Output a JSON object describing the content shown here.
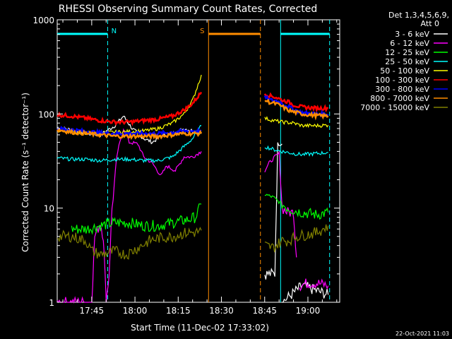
{
  "chart_data": {
    "type": "line",
    "title": "RHESSI Observing Summary Count Rates, Corrected",
    "xlabel": "Start Time (11-Dec-02 17:33:02)",
    "ylabel": "Corrected Count Rate (s⁻¹ detector⁻¹)",
    "footer": "22-Oct-2021 11:03",
    "yscale": "log",
    "ylim": [
      1,
      1000
    ],
    "xlim_minutes": [
      0,
      98
    ],
    "x_ticks": [
      {
        "label": "17:45",
        "minutes": 11.97
      },
      {
        "label": "18:00",
        "minutes": 26.97
      },
      {
        "label": "18:15",
        "minutes": 41.97
      },
      {
        "label": "18:30",
        "minutes": 56.97
      },
      {
        "label": "18:45",
        "minutes": 71.97
      },
      {
        "label": "19:00",
        "minutes": 86.97
      }
    ],
    "y_ticks": [
      {
        "label": "1",
        "value": 1
      },
      {
        "label": "10",
        "value": 10
      },
      {
        "label": "100",
        "value": 100
      },
      {
        "label": "1000",
        "value": 1000
      }
    ],
    "legend": {
      "placement": "right",
      "header": [
        "Det 1,3,4,5,6,9,",
        "Att 0"
      ],
      "entries": [
        {
          "label": "3 - 6 keV",
          "color": "#ffffff"
        },
        {
          "label": "6 - 12 keV",
          "color": "#ff00ff"
        },
        {
          "label": "12 - 25 keV",
          "color": "#00ff00"
        },
        {
          "label": "25 - 50 keV",
          "color": "#00ffff"
        },
        {
          "label": "50 - 100 keV",
          "color": "#ffff00"
        },
        {
          "label": "100 - 300 keV",
          "color": "#ff0000"
        },
        {
          "label": "300 - 800 keV",
          "color": "#0000ff"
        },
        {
          "label": "800 - 7000 keV",
          "color": "#ff8c00"
        },
        {
          "label": "7000 - 15000 keV",
          "color": "#808000"
        }
      ]
    },
    "flags": [
      {
        "label": "N",
        "color": "#00ffff",
        "segments": [
          [
            0,
            17.5
          ],
          [
            77.5,
            94.5
          ]
        ]
      },
      {
        "label": "S",
        "color": "#ff8c00",
        "segments": [
          [
            52.5,
            70.5
          ]
        ]
      }
    ],
    "vlines": [
      {
        "minutes": 17.5,
        "color": "#00ffff",
        "style": "dashed"
      },
      {
        "minutes": 94.5,
        "color": "#00ffff",
        "style": "dashed"
      },
      {
        "minutes": 77.5,
        "color": "#00ffff",
        "style": "solid"
      },
      {
        "minutes": 52.5,
        "color": "#ff8c00",
        "style": "solid"
      },
      {
        "minutes": 70.5,
        "color": "#ff8c00",
        "style": "dashed"
      }
    ],
    "series": [
      {
        "name": "3 - 6 keV",
        "color": "#ffffff",
        "segments": [
          [
            [
              0,
              72
            ],
            [
              5,
              68
            ],
            [
              10,
              62
            ],
            [
              15,
              60
            ],
            [
              20,
              75
            ],
            [
              23,
              95
            ],
            [
              26,
              70
            ],
            [
              30,
              55
            ],
            [
              33,
              50
            ],
            [
              36,
              58
            ],
            [
              40,
              62
            ],
            [
              44,
              70
            ],
            [
              48,
              65
            ],
            [
              50,
              62
            ]
          ],
          [
            [
              72,
              2
            ],
            [
              73.5,
              2
            ],
            [
              75.5,
              2
            ],
            [
              76.5,
              48
            ],
            [
              78,
              48
            ]
          ],
          [
            [
              78,
              1
            ],
            [
              85,
              1.5
            ],
            [
              94,
              1.2
            ]
          ]
        ]
      },
      {
        "name": "6 - 12 keV",
        "color": "#ff00ff",
        "segments": [
          [
            [
              0,
              1
            ],
            [
              12,
              1
            ],
            [
              13,
              5
            ],
            [
              15,
              7
            ],
            [
              16,
              5
            ],
            [
              17,
              1
            ],
            [
              18,
              2
            ],
            [
              19,
              10
            ],
            [
              21,
              40
            ],
            [
              23,
              70
            ],
            [
              25,
              50
            ],
            [
              28,
              48
            ],
            [
              30,
              35
            ],
            [
              33,
              30
            ],
            [
              36,
              22
            ],
            [
              38,
              28
            ],
            [
              41,
              25
            ],
            [
              44,
              35
            ],
            [
              47,
              35
            ],
            [
              50,
              40
            ]
          ],
          [
            [
              72,
              25
            ],
            [
              73.5,
              30
            ],
            [
              75.5,
              35
            ],
            [
              77,
              38
            ],
            [
              78,
              10
            ],
            [
              80,
              9
            ],
            [
              82,
              9
            ],
            [
              83,
              3
            ]
          ],
          [
            [
              84,
              1.5
            ],
            [
              87,
              1.6
            ],
            [
              90,
              1.6
            ],
            [
              94,
              1.5
            ]
          ]
        ]
      },
      {
        "name": "12 - 25 keV",
        "color": "#00ff00",
        "segments": [
          [
            [
              5,
              6
            ],
            [
              10,
              6
            ],
            [
              15,
              6.5
            ],
            [
              20,
              7
            ],
            [
              25,
              7
            ],
            [
              30,
              6.5
            ],
            [
              35,
              6.5
            ],
            [
              40,
              7
            ],
            [
              45,
              7.5
            ],
            [
              48,
              8
            ],
            [
              50,
              11
            ]
          ],
          [
            [
              72,
              14
            ],
            [
              75,
              13
            ],
            [
              78,
              11
            ],
            [
              80,
              10
            ],
            [
              82,
              9.5
            ],
            [
              85,
              9
            ],
            [
              90,
              8.5
            ],
            [
              94,
              9
            ]
          ]
        ]
      },
      {
        "name": "25 - 50 keV",
        "color": "#00ffff",
        "segments": [
          [
            [
              0,
              34
            ],
            [
              5,
              33
            ],
            [
              10,
              33
            ],
            [
              15,
              32
            ],
            [
              20,
              33
            ],
            [
              25,
              33
            ],
            [
              30,
              32
            ],
            [
              35,
              32
            ],
            [
              40,
              35
            ],
            [
              44,
              45
            ],
            [
              47,
              55
            ],
            [
              50,
              75
            ]
          ],
          [
            [
              72,
              45
            ],
            [
              75,
              42
            ],
            [
              78,
              40
            ],
            [
              82,
              38
            ],
            [
              85,
              37
            ],
            [
              90,
              38
            ],
            [
              94,
              39
            ]
          ]
        ]
      },
      {
        "name": "50 - 100 keV",
        "color": "#ffff00",
        "segments": [
          [
            [
              0,
              68
            ],
            [
              5,
              65
            ],
            [
              10,
              63
            ],
            [
              15,
              63
            ],
            [
              20,
              64
            ],
            [
              25,
              65
            ],
            [
              30,
              66
            ],
            [
              35,
              70
            ],
            [
              40,
              80
            ],
            [
              44,
              100
            ],
            [
              47,
              140
            ],
            [
              50,
              260
            ]
          ],
          [
            [
              72,
              90
            ],
            [
              75,
              85
            ],
            [
              78,
              82
            ],
            [
              82,
              80
            ],
            [
              85,
              75
            ],
            [
              90,
              75
            ],
            [
              94,
              76
            ]
          ]
        ]
      },
      {
        "name": "100 - 300 keV",
        "color": "#ff0000",
        "segments": [
          [
            [
              0,
              98
            ],
            [
              5,
              95
            ],
            [
              10,
              90
            ],
            [
              15,
              85
            ],
            [
              20,
              82
            ],
            [
              25,
              82
            ],
            [
              30,
              85
            ],
            [
              35,
              88
            ],
            [
              40,
              95
            ],
            [
              44,
              110
            ],
            [
              47,
              130
            ],
            [
              50,
              170
            ]
          ],
          [
            [
              72,
              165
            ],
            [
              74,
              155
            ],
            [
              76,
              150
            ],
            [
              78,
              140
            ],
            [
              80,
              135
            ],
            [
              82,
              125
            ],
            [
              85,
              118
            ],
            [
              90,
              115
            ],
            [
              94,
              115
            ]
          ]
        ]
      },
      {
        "name": "300 - 800 keV",
        "color": "#0000ff",
        "segments": [
          [
            [
              0,
              70
            ],
            [
              5,
              68
            ],
            [
              10,
              65
            ],
            [
              15,
              63
            ],
            [
              20,
              62
            ],
            [
              25,
              62
            ],
            [
              30,
              62
            ],
            [
              35,
              62
            ],
            [
              40,
              64
            ],
            [
              44,
              66
            ],
            [
              47,
              66
            ],
            [
              50,
              66
            ]
          ],
          [
            [
              72,
              150
            ],
            [
              74,
              140
            ],
            [
              76,
              138
            ],
            [
              78,
              130
            ],
            [
              80,
              120
            ],
            [
              82,
              112
            ],
            [
              85,
              103
            ],
            [
              90,
              100
            ],
            [
              94,
              99
            ]
          ]
        ]
      },
      {
        "name": "800 - 7000 keV",
        "color": "#ff8c00",
        "segments": [
          [
            [
              0,
              68
            ],
            [
              5,
              64
            ],
            [
              10,
              62
            ],
            [
              15,
              60
            ],
            [
              20,
              58
            ],
            [
              25,
              58
            ],
            [
              30,
              58
            ],
            [
              35,
              58
            ],
            [
              40,
              60
            ],
            [
              44,
              62
            ],
            [
              47,
              62
            ],
            [
              50,
              62
            ]
          ],
          [
            [
              72,
              140
            ],
            [
              74,
              132
            ],
            [
              76,
              128
            ],
            [
              78,
              120
            ],
            [
              80,
              110
            ],
            [
              82,
              105
            ],
            [
              85,
              100
            ],
            [
              90,
              96
            ],
            [
              94,
              95
            ]
          ]
        ]
      },
      {
        "name": "7000 - 15000 keV",
        "color": "#808000",
        "segments": [
          [
            [
              0,
              5
            ],
            [
              5,
              5
            ],
            [
              10,
              4.5
            ],
            [
              12,
              3.5
            ],
            [
              15,
              3.2
            ],
            [
              20,
              3.5
            ],
            [
              24,
              3.2
            ],
            [
              28,
              3.8
            ],
            [
              32,
              4.5
            ],
            [
              35,
              4.8
            ],
            [
              40,
              5
            ],
            [
              45,
              5.5
            ],
            [
              48,
              5.5
            ],
            [
              50,
              5.8
            ]
          ],
          [
            [
              72,
              4
            ],
            [
              75,
              3.8
            ],
            [
              78,
              4.5
            ],
            [
              80,
              4.5
            ],
            [
              83,
              5
            ],
            [
              86,
              5.2
            ],
            [
              90,
              5.5
            ],
            [
              94,
              6.5
            ]
          ]
        ]
      }
    ]
  }
}
